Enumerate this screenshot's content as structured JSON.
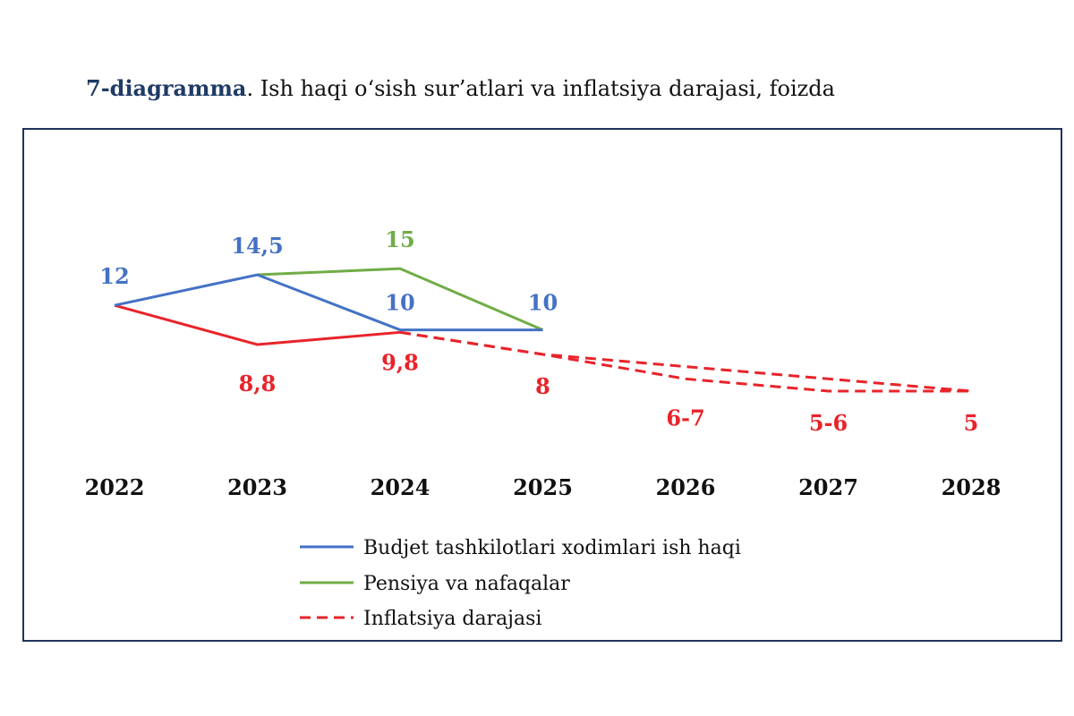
{
  "title": {
    "lead": "7-diagramma",
    "rest": ". Ish haqi o‘sish sur’atlari va inflatsiya darajasi, foizda"
  },
  "chart_data": {
    "type": "line",
    "categories": [
      "2022",
      "2023",
      "2024",
      "2025",
      "2026",
      "2027",
      "2028"
    ],
    "ylim": [
      0,
      20
    ],
    "grid": false,
    "legend_position": "bottom",
    "series": [
      {
        "name": "Budjet tashkilotlari xodimlari ish haqi",
        "color": "#4472c4",
        "style": "solid",
        "values": [
          12,
          14.5,
          10,
          10,
          null,
          null,
          null
        ],
        "labels": [
          "12",
          "14,5",
          "10",
          "10",
          "",
          "",
          ""
        ]
      },
      {
        "name": "Pensiya va nafaqalar",
        "color": "#70ad47",
        "style": "solid",
        "values": [
          null,
          14.5,
          15,
          10,
          null,
          null,
          null
        ],
        "labels": [
          "",
          "",
          "15",
          "",
          "",
          "",
          ""
        ]
      },
      {
        "name": "Inflatsiya darajasi",
        "color": "#e8242a",
        "style": "solid-then-dashed",
        "values": [
          12,
          8.8,
          9.8,
          8,
          6.5,
          5.5,
          5
        ],
        "labels": [
          "",
          "8,8",
          "9,8",
          "8",
          "6-7",
          "5-6",
          "5"
        ],
        "ranges": [
          null,
          null,
          null,
          null,
          [
            6,
            7
          ],
          [
            5,
            6
          ],
          null
        ]
      }
    ]
  }
}
